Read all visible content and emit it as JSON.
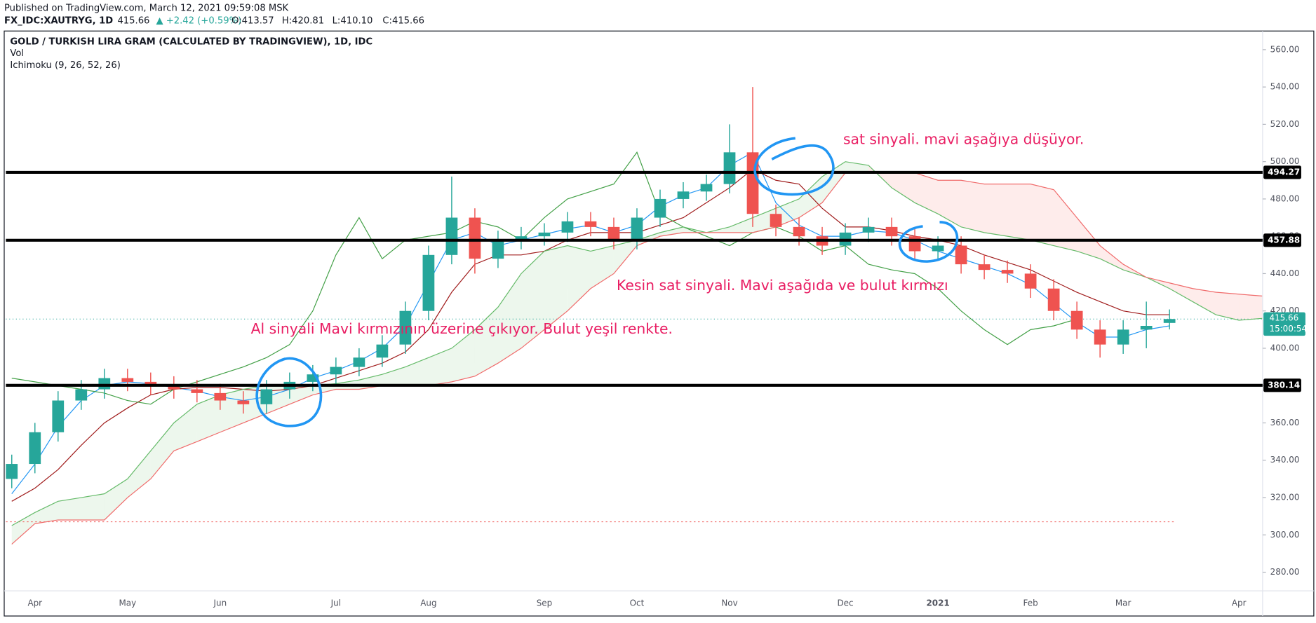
{
  "header": {
    "published": "Published on TradingView.com, March 12, 2021 09:59:08 MSK",
    "symbol": "FX_IDC:XAUTRYG, 1D",
    "last": "415.66",
    "change": "▲ +2.42 (+0.59%)",
    "open": "O:413.57",
    "high": "H:420.81",
    "low": "L:410.10",
    "close": "C:415.66"
  },
  "chart_data": {
    "type": "candlestick",
    "title": "GOLD / TURKISH LIRA GRAM (CALCULATED BY TRADINGVIEW), 1D, IDC",
    "indicators": [
      "Vol",
      "Ichimoku (9, 26, 52, 26)"
    ],
    "categories": [
      null,
      "Apr",
      null,
      null,
      null,
      "May",
      null,
      null,
      null,
      "Jun",
      null,
      null,
      null,
      null,
      "Jul",
      null,
      null,
      null,
      "Aug",
      null,
      null,
      null,
      null,
      "Sep",
      null,
      null,
      null,
      "Oct",
      null,
      null,
      null,
      "Nov",
      null,
      null,
      null,
      null,
      "Dec",
      null,
      null,
      null,
      "2021",
      null,
      null,
      null,
      "Feb",
      null,
      null,
      null,
      "Mar",
      null,
      null,
      null,
      null,
      "Apr",
      null
    ],
    "candles": {
      "up_color": "#26a69a",
      "down_color": "#ef5350",
      "open": [
        330,
        338,
        355,
        372,
        378,
        384,
        382,
        380,
        378,
        376,
        372,
        370,
        378,
        382,
        386,
        390,
        395,
        402,
        420,
        450,
        470,
        448,
        458,
        460,
        462,
        468,
        465,
        458,
        470,
        480,
        484,
        488,
        505,
        472,
        465,
        460,
        455,
        462,
        465,
        460,
        452,
        455,
        445,
        442,
        440,
        432,
        420,
        410,
        402,
        410,
        413.57,
        null,
        null,
        null,
        null
      ],
      "high": [
        343,
        360,
        377,
        383,
        389,
        389,
        387,
        385,
        383,
        381,
        377,
        383,
        387,
        391,
        395,
        400,
        407,
        425,
        455,
        492,
        475,
        463,
        465,
        467,
        473,
        473,
        470,
        475,
        485,
        489,
        493,
        520,
        540,
        477,
        470,
        465,
        467,
        470,
        470,
        465,
        460,
        460,
        450,
        447,
        445,
        437,
        425,
        415,
        415,
        425,
        420.81,
        null,
        null,
        null,
        null
      ],
      "low": [
        325,
        333,
        350,
        367,
        373,
        377,
        375,
        373,
        371,
        367,
        365,
        365,
        373,
        377,
        381,
        385,
        390,
        397,
        415,
        445,
        440,
        443,
        453,
        455,
        457,
        460,
        453,
        453,
        465,
        475,
        479,
        483,
        465,
        460,
        455,
        450,
        450,
        457,
        455,
        447,
        447,
        440,
        437,
        435,
        427,
        415,
        405,
        395,
        397,
        400,
        410.1,
        null,
        null,
        null,
        null
      ],
      "close": [
        338,
        355,
        372,
        378,
        384,
        382,
        380,
        378,
        376,
        372,
        370,
        378,
        382,
        386,
        390,
        395,
        402,
        420,
        450,
        470,
        448,
        458,
        460,
        462,
        468,
        465,
        458,
        470,
        480,
        484,
        488,
        505,
        472,
        465,
        460,
        455,
        462,
        465,
        460,
        452,
        455,
        445,
        442,
        440,
        432,
        420,
        410,
        402,
        410,
        412,
        415.66,
        null,
        null,
        null,
        null
      ]
    },
    "series": [
      {
        "color": "#2196f3",
        "values": [
          322,
          338,
          358,
          372,
          380,
          382,
          381,
          379,
          377,
          374,
          372,
          374,
          378,
          384,
          388,
          393,
          400,
          412,
          435,
          458,
          462,
          455,
          458,
          461,
          464,
          466,
          462,
          466,
          476,
          482,
          486,
          498,
          505,
          478,
          466,
          460,
          460,
          463,
          462,
          458,
          452,
          448,
          444,
          440,
          434,
          424,
          414,
          406,
          406,
          410,
          412,
          null,
          null,
          null,
          null
        ]
      },
      {
        "color": "#a01c1c",
        "values": [
          318,
          325,
          335,
          348,
          360,
          368,
          375,
          378,
          379,
          379,
          378,
          377,
          378,
          380,
          384,
          388,
          392,
          398,
          410,
          430,
          445,
          450,
          450,
          452,
          458,
          462,
          462,
          462,
          466,
          470,
          478,
          486,
          496,
          490,
          488,
          475,
          465,
          465,
          463,
          460,
          458,
          455,
          450,
          446,
          442,
          436,
          430,
          425,
          420,
          418,
          418,
          null,
          null,
          null,
          null
        ]
      },
      {
        "color": "#43a047",
        "values": [
          384,
          382,
          380,
          378,
          376,
          372,
          370,
          378,
          382,
          386,
          390,
          395,
          402,
          420,
          450,
          470,
          448,
          458,
          460,
          462,
          468,
          465,
          458,
          470,
          480,
          484,
          488,
          505,
          472,
          465,
          460,
          455,
          462,
          465,
          460,
          452,
          455,
          445,
          442,
          440,
          432,
          420,
          410,
          402,
          410,
          412,
          415.66,
          null,
          null,
          null,
          null,
          null,
          null,
          null,
          null
        ]
      },
      {
        "color": "#66bb6a",
        "values": [
          305,
          312,
          318,
          320,
          322,
          330,
          345,
          360,
          370,
          375,
          378,
          380,
          380,
          380,
          381,
          383,
          386,
          390,
          395,
          400,
          410,
          422,
          440,
          452,
          455,
          452,
          455,
          458,
          462,
          465,
          462,
          465,
          470,
          475,
          480,
          492,
          500,
          498,
          486,
          478,
          472,
          465,
          462,
          460,
          458,
          455,
          452,
          448,
          442,
          438,
          432,
          425,
          418,
          415,
          416
        ]
      },
      {
        "color": "#f06b6b",
        "values": [
          295,
          306,
          308,
          308,
          308,
          320,
          330,
          345,
          350,
          355,
          360,
          365,
          370,
          375,
          378,
          378,
          380,
          380,
          380,
          382,
          385,
          392,
          400,
          410,
          420,
          432,
          440,
          455,
          460,
          462,
          462,
          462,
          462,
          465,
          470,
          478,
          494,
          494,
          494,
          494,
          490,
          490,
          488,
          488,
          488,
          485,
          470,
          455,
          445,
          438,
          435,
          432,
          430,
          429,
          428
        ]
      }
    ],
    "cloud_colors": [
      "rgba(76,175,80,0.1)",
      "rgba(244,67,54,0.1)"
    ],
    "levels": [
      494.27,
      457.88,
      380.14
    ],
    "last_price": 415.66,
    "countdown": "15:00:54",
    "reference_line": 307,
    "ylim": [
      270,
      570
    ],
    "yticks": [
      {
        "value": 280,
        "label": "280.00"
      },
      {
        "value": 300,
        "label": "300.00"
      },
      {
        "value": 320,
        "label": "320.00"
      },
      {
        "value": 340,
        "label": "340.00"
      },
      {
        "value": 360,
        "label": "360.00"
      },
      {
        "value": 380,
        "label": "380.00"
      },
      {
        "value": 400,
        "label": "400.00"
      },
      {
        "value": 420,
        "label": "420.00"
      },
      {
        "value": 440,
        "label": "440.00"
      },
      {
        "value": 460,
        "label": "460.00"
      },
      {
        "value": 480,
        "label": "480.00"
      },
      {
        "value": 500,
        "label": "500.00"
      },
      {
        "value": 520,
        "label": "520.00"
      },
      {
        "value": 540,
        "label": "540.00"
      },
      {
        "value": 560,
        "label": "560.00"
      }
    ],
    "annotations": [
      "sat sinyali. mavi aşağıya düşüyor.",
      "Kesin sat sinyali. Mavi aşağıda ve bulut kırmızı",
      "Al sinyali Mavi kırmızının üzerine çıkıyor. Bulut yeşil renkte."
    ]
  }
}
